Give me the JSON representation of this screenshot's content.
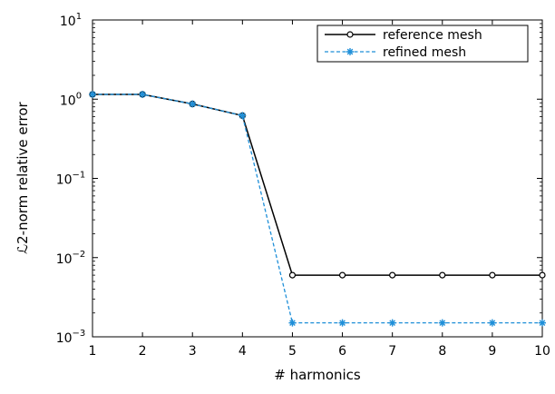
{
  "chart_data": {
    "type": "line",
    "title": "",
    "xlabel": "# harmonics",
    "ylabel": "ℒ2-norm relative error",
    "yscale": "log",
    "xlim": [
      1,
      10
    ],
    "ylim": [
      0.001,
      10
    ],
    "x": [
      1,
      2,
      3,
      4,
      5,
      6,
      7,
      8,
      9,
      10
    ],
    "x_ticks": [
      "1",
      "2",
      "3",
      "4",
      "5",
      "6",
      "7",
      "8",
      "9",
      "10"
    ],
    "y_ticks": [
      {
        "value": 0.001,
        "base": "10",
        "exp": "−3"
      },
      {
        "value": 0.01,
        "base": "10",
        "exp": "−2"
      },
      {
        "value": 0.1,
        "base": "10",
        "exp": "−1"
      },
      {
        "value": 1,
        "base": "10",
        "exp": "0"
      },
      {
        "value": 10,
        "base": "10",
        "exp": "1"
      }
    ],
    "grid": false,
    "legend_position": "top-right",
    "series": [
      {
        "name": "reference mesh",
        "color": "#000000",
        "line_style": "solid",
        "marker": "circle",
        "values": [
          1.15,
          1.15,
          0.87,
          0.62,
          0.006,
          0.006,
          0.006,
          0.006,
          0.006,
          0.006
        ]
      },
      {
        "name": "refined mesh",
        "color": "#1f8fd8",
        "line_style": "dashed",
        "marker": "star",
        "values": [
          1.15,
          1.15,
          0.87,
          0.62,
          0.0015,
          0.0015,
          0.0015,
          0.0015,
          0.0015,
          0.0015
        ]
      }
    ]
  }
}
